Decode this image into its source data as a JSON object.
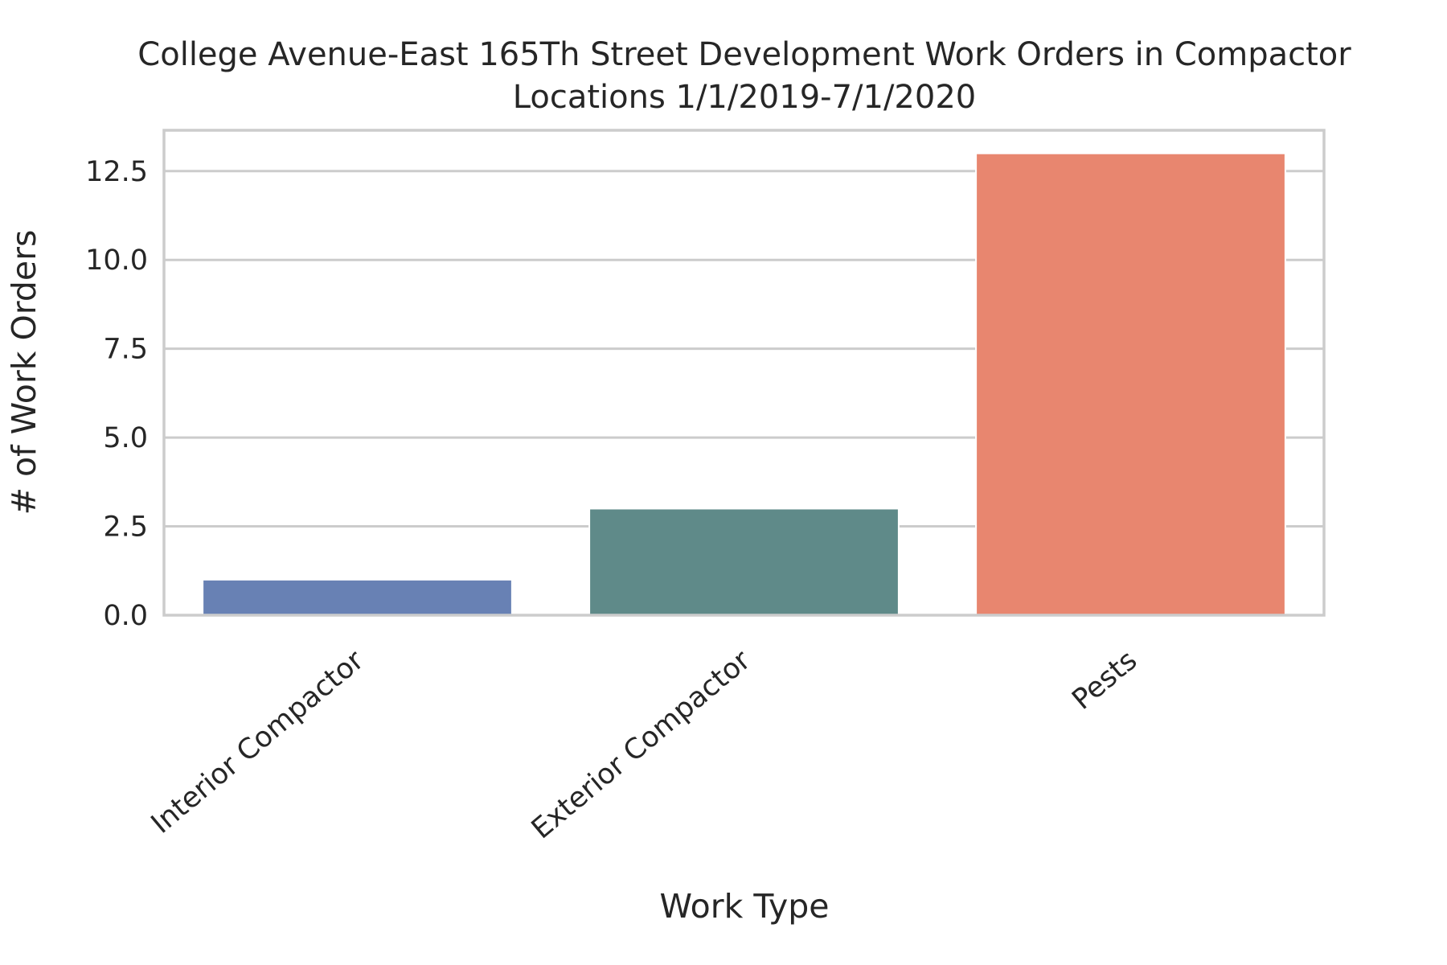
{
  "chart_data": {
    "type": "bar",
    "title": "College Avenue-East 165Th Street Development Work Orders in Compactor",
    "title_line2": "Locations 1/1/2019-7/1/2020",
    "xlabel": "Work Type",
    "ylabel": "# of Work Orders",
    "categories": [
      "Interior Compactor",
      "Exterior Compactor",
      "Pests"
    ],
    "values": [
      1,
      3,
      13
    ],
    "colors": [
      "#6881b4",
      "#5f8a89",
      "#e8866f"
    ],
    "yticks": [
      0.0,
      2.5,
      5.0,
      7.5,
      10.0,
      12.5
    ],
    "ytick_labels": [
      "0.0",
      "2.5",
      "5.0",
      "7.5",
      "10.0",
      "12.5"
    ],
    "ylim": [
      0,
      13.65
    ],
    "grid": true,
    "legend": "none"
  }
}
